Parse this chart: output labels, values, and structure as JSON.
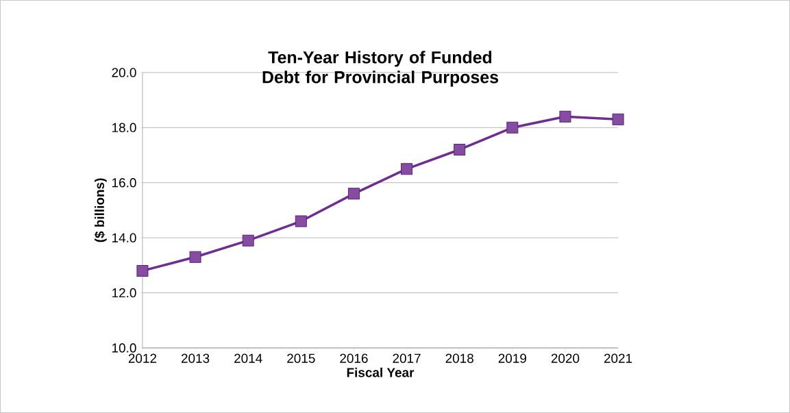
{
  "chart_data": {
    "type": "line",
    "title": "Ten-Year History of Funded Debt for Provincial Purposes",
    "xlabel": "Fiscal Year",
    "ylabel": "($ billions)",
    "categories": [
      "2012",
      "2013",
      "2014",
      "2015",
      "2016",
      "2017",
      "2018",
      "2019",
      "2020",
      "2021"
    ],
    "series": [
      {
        "color": "#6f2c91",
        "values": [
          12.8,
          13.3,
          13.9,
          14.6,
          15.6,
          16.5,
          17.2,
          18.0,
          18.4,
          18.3
        ]
      }
    ],
    "ylim": [
      10,
      20
    ],
    "yticks": [
      {
        "value": 10,
        "label": "10.0"
      },
      {
        "value": 12,
        "label": "12.0"
      },
      {
        "value": 14,
        "label": "14.0"
      },
      {
        "value": 16,
        "label": "16.0"
      },
      {
        "value": 18,
        "label": "18.0"
      },
      {
        "value": 20,
        "label": "20.0"
      }
    ],
    "grid": "y",
    "marker": "square",
    "line_style": "solid"
  }
}
